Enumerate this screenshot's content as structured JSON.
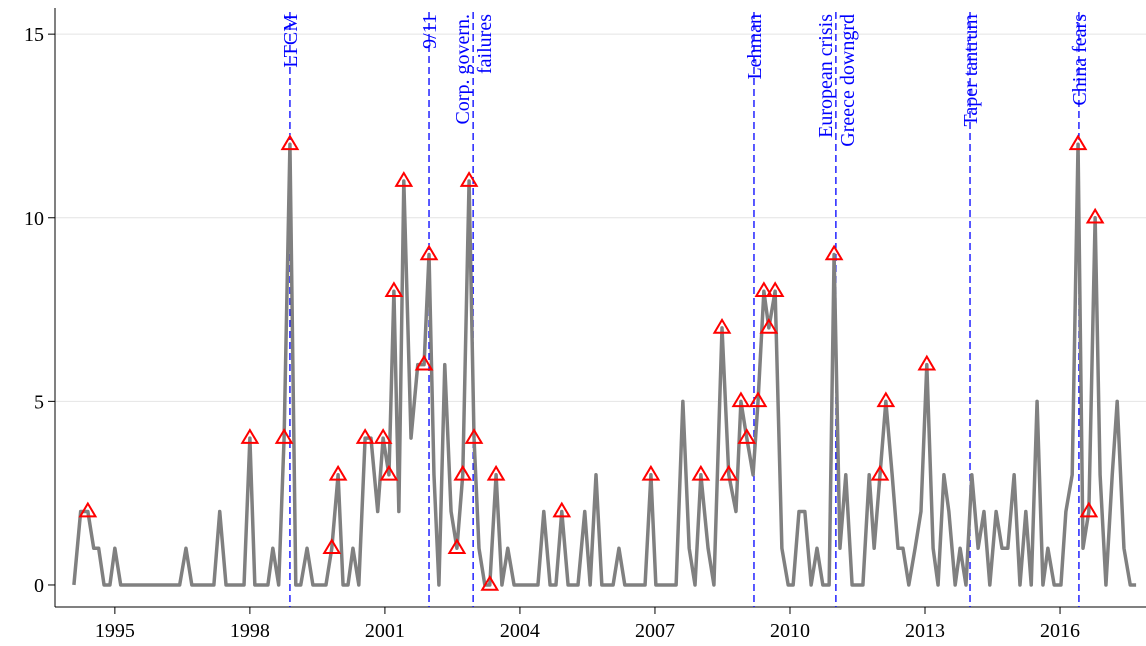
{
  "chart_data": {
    "type": "line",
    "xlim": [
      1993.67,
      2017.91
    ],
    "ylim": [
      -0.6,
      15.93
    ],
    "xticks": [
      1995,
      1998,
      2001,
      2004,
      2007,
      2010,
      2013,
      2016
    ],
    "yticks": [
      0,
      5,
      10,
      15
    ],
    "grid": true,
    "series": [
      {
        "color": "#808080",
        "x": [
          1994.09,
          1994.24,
          1994.4,
          1994.53,
          1994.64,
          1994.76,
          1994.89,
          1995.0,
          1995.13,
          1996.44,
          1996.58,
          1996.71,
          1997.2,
          1997.33,
          1997.47,
          1997.87,
          1998.0,
          1998.11,
          1998.4,
          1998.51,
          1998.64,
          1998.76,
          1998.89,
          1999.02,
          1999.13,
          1999.27,
          1999.4,
          1999.69,
          1999.82,
          1999.96,
          2000.07,
          2000.18,
          2000.29,
          2000.42,
          2000.56,
          2000.69,
          2000.84,
          2000.96,
          2001.09,
          2001.2,
          2001.31,
          2001.42,
          2001.58,
          2001.73,
          2001.87,
          2001.98,
          2002.09,
          2002.2,
          2002.33,
          2002.47,
          2002.6,
          2002.73,
          2002.87,
          2002.98,
          2003.09,
          2003.22,
          2003.33,
          2003.47,
          2003.6,
          2003.73,
          2003.87,
          2004.4,
          2004.53,
          2004.67,
          2004.8,
          2004.93,
          2005.07,
          2005.29,
          2005.44,
          2005.56,
          2005.69,
          2005.82,
          2006.07,
          2006.2,
          2006.33,
          2006.78,
          2006.91,
          2007.02,
          2007.47,
          2007.62,
          2007.76,
          2007.89,
          2008.02,
          2008.18,
          2008.31,
          2008.49,
          2008.64,
          2008.8,
          2008.91,
          2009.04,
          2009.18,
          2009.29,
          2009.42,
          2009.53,
          2009.67,
          2009.82,
          2009.96,
          2010.07,
          2010.2,
          2010.33,
          2010.47,
          2010.6,
          2010.73,
          2010.87,
          2010.98,
          2011.11,
          2011.24,
          2011.38,
          2011.51,
          2011.62,
          2011.76,
          2011.87,
          2012.0,
          2012.13,
          2012.27,
          2012.4,
          2012.51,
          2012.64,
          2012.78,
          2012.91,
          2013.04,
          2013.18,
          2013.29,
          2013.42,
          2013.53,
          2013.67,
          2013.78,
          2013.91,
          2014.04,
          2014.18,
          2014.31,
          2014.44,
          2014.58,
          2014.71,
          2014.84,
          2014.98,
          2015.11,
          2015.24,
          2015.36,
          2015.49,
          2015.62,
          2015.73,
          2015.87,
          2016.02,
          2016.13,
          2016.27,
          2016.4,
          2016.51,
          2016.64,
          2016.78,
          2016.89,
          2017.02,
          2017.16,
          2017.27,
          2017.42,
          2017.56,
          2017.69
        ],
        "values": [
          0,
          2,
          2,
          1,
          1,
          0,
          0,
          1,
          0,
          0,
          1,
          0,
          0,
          2,
          0,
          0,
          4,
          0,
          0,
          1,
          0,
          4,
          12,
          0,
          0,
          1,
          0,
          0,
          1,
          3,
          0,
          0,
          1,
          0,
          4,
          4,
          2,
          4,
          3,
          8,
          2,
          11,
          4,
          6,
          6,
          9,
          3,
          0,
          6,
          2,
          1,
          3,
          11,
          4,
          1,
          0,
          0,
          3,
          0,
          1,
          0,
          0,
          2,
          0,
          0,
          2,
          0,
          0,
          2,
          0,
          3,
          0,
          0,
          1,
          0,
          0,
          3,
          0,
          0,
          5,
          1,
          0,
          3,
          1,
          0,
          7,
          3,
          2,
          5,
          4,
          3,
          5,
          8,
          7,
          8,
          1,
          0,
          0,
          2,
          2,
          0,
          1,
          0,
          0,
          9,
          1,
          3,
          0,
          0,
          0,
          3,
          1,
          3,
          5,
          3,
          1,
          1,
          0,
          1,
          2,
          6,
          1,
          0,
          3,
          2,
          0,
          1,
          0,
          3,
          1,
          2,
          0,
          2,
          1,
          1,
          3,
          0,
          2,
          0,
          5,
          0,
          1,
          0,
          0,
          2,
          3,
          12,
          1,
          2,
          10,
          3,
          0,
          3,
          5,
          1,
          0,
          0
        ]
      },
      {
        "color": "#ff0000",
        "marker": "triangle",
        "x": [
          1994.4,
          1998.0,
          1998.76,
          1998.89,
          1999.82,
          1999.96,
          2000.56,
          2000.96,
          2001.09,
          2001.2,
          2001.42,
          2001.87,
          2001.98,
          2002.6,
          2002.73,
          2002.87,
          2002.98,
          2003.33,
          2003.47,
          2004.93,
          2006.91,
          2008.02,
          2008.49,
          2008.64,
          2008.91,
          2009.04,
          2009.29,
          2009.42,
          2009.53,
          2009.67,
          2010.98,
          2012.0,
          2012.13,
          2013.04,
          2016.4,
          2016.64,
          2016.78
        ],
        "values": [
          2,
          4,
          4,
          12,
          1,
          3,
          4,
          4,
          3,
          8,
          11,
          6,
          9,
          1,
          3,
          11,
          4,
          0,
          3,
          2,
          3,
          3,
          7,
          3,
          5,
          4,
          5,
          8,
          7,
          8,
          9,
          3,
          5,
          6,
          12,
          2,
          10
        ]
      }
    ],
    "events_color": "#0000ff",
    "events": [
      {
        "x": 1998.89,
        "label": [
          "LTCM"
        ]
      },
      {
        "x": 2001.98,
        "label": [
          "9/11"
        ]
      },
      {
        "x": 2002.96,
        "label": [
          "Corp. govern.",
          "failures"
        ]
      },
      {
        "x": 2009.2,
        "label": [
          "Lehman"
        ]
      },
      {
        "x": 2011.02,
        "label": [
          "European crisis",
          "Greece downgrd"
        ]
      },
      {
        "x": 2014.0,
        "label": [
          "Taper tantrum"
        ]
      },
      {
        "x": 2016.42,
        "label": [
          "China fears"
        ]
      }
    ]
  }
}
